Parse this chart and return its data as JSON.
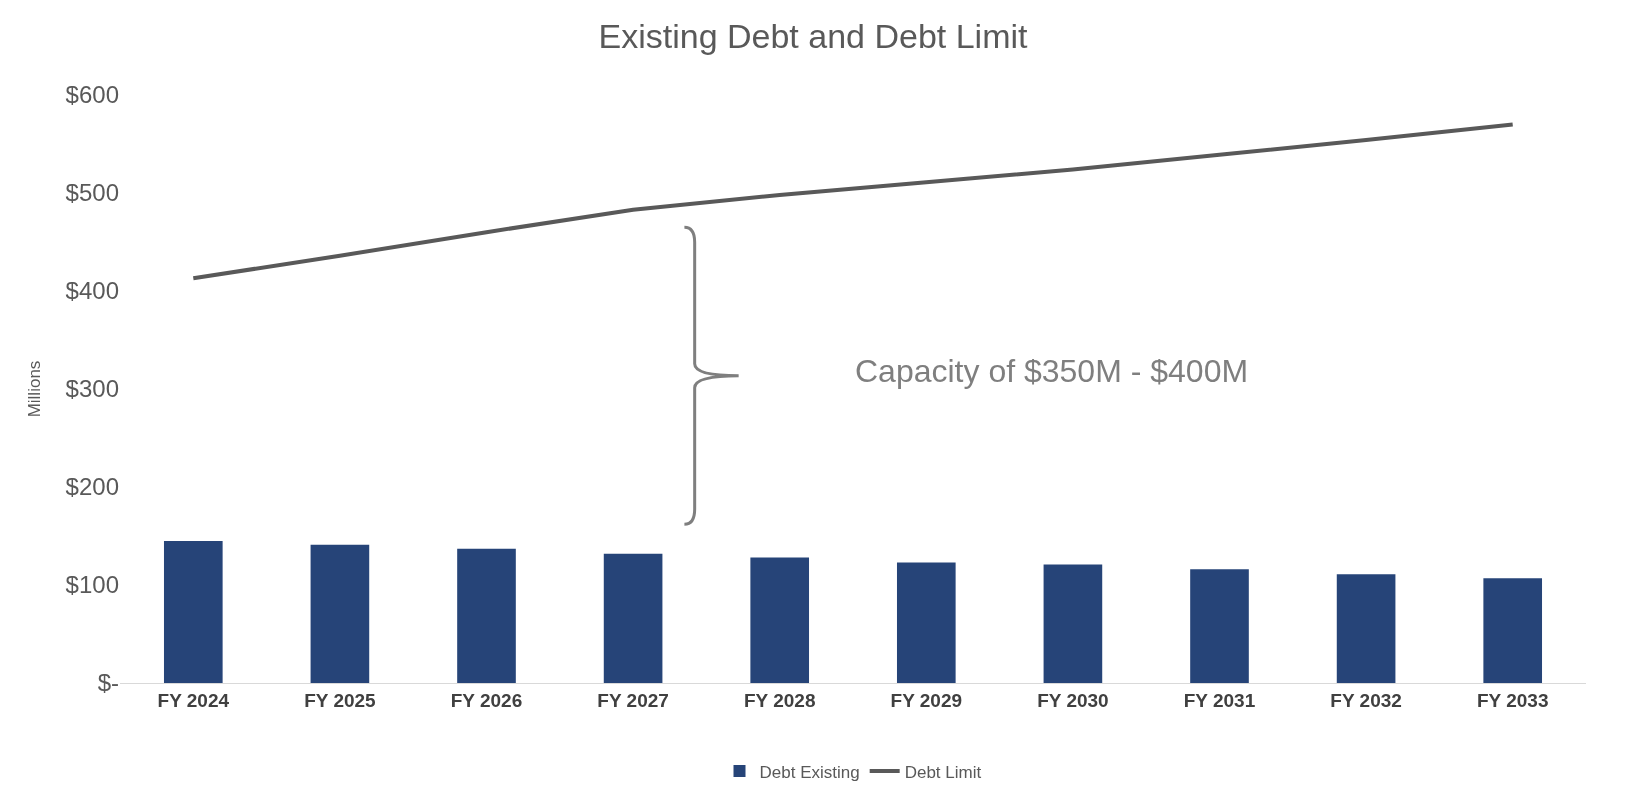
{
  "chart_data": {
    "type": "bar",
    "title": "Existing Debt and Debt Limit",
    "ylabel": "Millions",
    "categories": [
      "FY 2024",
      "FY 2025",
      "FY 2026",
      "FY 2027",
      "FY 2028",
      "FY 2029",
      "FY 2030",
      "FY 2031",
      "FY 2032",
      "FY 2033"
    ],
    "series": [
      {
        "name": "Debt Existing",
        "color": "#264478",
        "values": [
          145,
          141,
          137,
          132,
          128,
          123,
          121,
          116,
          111,
          107
        ]
      },
      {
        "name": "Debt Limit",
        "type": "line",
        "color": "#595959",
        "marker": "none",
        "line_style": "solid",
        "values": [
          413,
          436,
          460,
          483,
          498,
          511,
          524,
          539,
          554,
          570
        ]
      }
    ],
    "ylim": [
      0,
      600
    ],
    "yticks": [
      {
        "value": 0,
        "label": "$-"
      },
      {
        "value": 100,
        "label": "$100"
      },
      {
        "value": 200,
        "label": "$200"
      },
      {
        "value": 300,
        "label": "$300"
      },
      {
        "value": 400,
        "label": "$400"
      },
      {
        "value": 500,
        "label": "$500"
      },
      {
        "value": 600,
        "label": "$600"
      }
    ],
    "grid": false,
    "legend": "bottom",
    "annotations": [
      "Capacity of $350M - $400M"
    ]
  }
}
